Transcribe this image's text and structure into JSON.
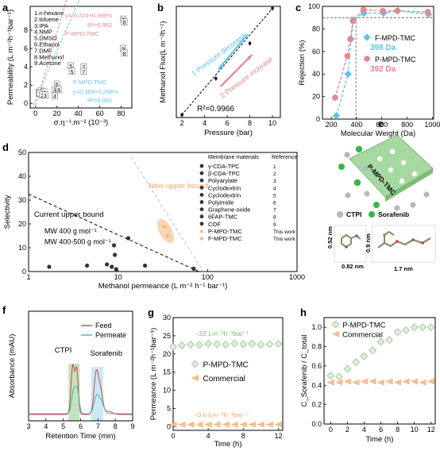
{
  "colors": {
    "pink": "#e8868a",
    "blue": "#5ec4e6",
    "orange": "#f3a86a",
    "black": "#111111",
    "green": "#90cc90",
    "teal": "#3fb8a8",
    "red": "#e03c3c",
    "peach": "#f6c08a"
  },
  "panel_labels": {
    "a": "a",
    "b": "b",
    "c": "c",
    "d": "d",
    "e": "e",
    "f": "f",
    "g": "g",
    "h": "h"
  },
  "chart_data": [
    {
      "id": "a",
      "type": "scatter",
      "xlabel": "σ.η⁻¹.m⁻² (10⁻³)",
      "ylabel": "Permeability (L m⁻²h⁻¹bar⁻¹)",
      "xticks": [
        "0",
        "20",
        "40",
        "60",
        "80"
      ],
      "yticks": [
        "0",
        "2",
        "4",
        "6",
        "8"
      ],
      "xlim": [
        -5,
        90
      ],
      "ylim": [
        -0.5,
        10.6
      ],
      "solvents": [
        "1.n-hexane",
        "2.toluene",
        "3.IPA",
        "4.NMP",
        "5.DMSO",
        "6.Ethanol",
        "7.DMF",
        "8.Methanol",
        "9.Acetone"
      ],
      "series": [
        {
          "name": "P-MPD-TMC",
          "fit": "y=-0.224+0.399*x",
          "r2": "R²=0.952",
          "slope": 0.399,
          "intercept": -0.224,
          "points": [
            {
              "x": 3,
              "y": 1.2,
              "l": "1"
            },
            {
              "x": 5,
              "y": 1.35,
              "l": "2"
            },
            {
              "x": 8,
              "y": 1.25,
              "l": "4"
            },
            {
              "x": 18,
              "y": 1.45,
              "l": "3"
            },
            {
              "x": 20,
              "y": 2.1,
              "l": "6"
            },
            {
              "x": 33,
              "y": 4.1,
              "l": "5"
            },
            {
              "x": 45,
              "y": 4.0,
              "l": "7"
            },
            {
              "x": 82,
              "y": 9.2,
              "l": "9"
            },
            {
              "x": 83,
              "y": 8.9,
              "l": "8"
            }
          ]
        },
        {
          "name": "F-MPD-TMC",
          "fit": "y=0.369+0.268*x",
          "r2": "R²=0.901",
          "slope": 0.268,
          "intercept": 0.369,
          "points": [
            {
              "x": 4,
              "y": 1.1,
              "l": "1"
            },
            {
              "x": 6,
              "y": 0.9,
              "l": "2"
            },
            {
              "x": 9,
              "y": 0.9,
              "l": "3"
            },
            {
              "x": 18,
              "y": 0.85,
              "l": "4"
            },
            {
              "x": 22,
              "y": 1.5,
              "l": "6"
            },
            {
              "x": 34,
              "y": 3.5,
              "l": "5"
            },
            {
              "x": 45,
              "y": 3.5,
              "l": "7"
            },
            {
              "x": 82,
              "y": 6.0,
              "l": "9"
            },
            {
              "x": 83,
              "y": 5.5,
              "l": "8"
            }
          ]
        }
      ]
    },
    {
      "id": "b",
      "type": "line",
      "xlabel": "Pressure (bar)",
      "ylabel": "Methanol Flux(L m⁻²h⁻¹)",
      "xticks": [
        "2",
        "4",
        "6",
        "8",
        "10"
      ],
      "xlim": [
        1.5,
        10.7
      ],
      "ylim": [
        55,
        340
      ],
      "x": [
        2,
        5,
        8,
        10
      ],
      "y": [
        62,
        155,
        245,
        335
      ],
      "r2": "R²=0.9966",
      "annot_up": "1 Pressure decrease",
      "annot_down": "2 Pressure increase"
    },
    {
      "id": "c",
      "type": "line",
      "xlabel": "Molecular Weight (Da)",
      "ylabel": "Rejection (%)",
      "xticks": [
        "200",
        "400",
        "600",
        "800",
        "1000"
      ],
      "yticks": [
        "0",
        "20",
        "40",
        "60",
        "80",
        "100"
      ],
      "xlim": [
        130,
        1010
      ],
      "ylim": [
        0,
        100
      ],
      "series": [
        {
          "name": "F-MPD-TMC",
          "cutoff": "398 Da",
          "x": [
            240,
            333,
            356,
            376,
            459,
            613,
            727,
            969
          ],
          "y": [
            3,
            40,
            71,
            88,
            94,
            94,
            96,
            93
          ]
        },
        {
          "name": "P-MPD-TMC",
          "cutoff": "392 Da",
          "x": [
            230,
            327,
            350,
            371,
            454,
            608,
            722,
            964
          ],
          "y": [
            19,
            56,
            71,
            87,
            97,
            96,
            96,
            95
          ]
        }
      ]
    },
    {
      "id": "d",
      "type": "scatter",
      "xlabel": "Methanol permeance (L m⁻² h⁻¹ bar⁻¹)",
      "ylabel": "Selectivity",
      "xticks": [
        "1",
        "10",
        "100",
        "1000"
      ],
      "yticks": [
        "0",
        "10",
        "20",
        "30",
        "40",
        "50"
      ],
      "xlim": [
        1,
        1000
      ],
      "ylim": [
        0,
        50
      ],
      "lines": {
        "current": "Current upper bound",
        "new": "New upper bound",
        "mw400": "MW 400 g mol⁻¹",
        "mw400500": "MW 400-500 g mol⁻¹"
      },
      "legend_header": [
        "Membrane materials",
        "Reference"
      ],
      "legend": [
        {
          "name": "γ-CDA-TPC",
          "ref": "1"
        },
        {
          "name": "β-CDA-TPC",
          "ref": "2"
        },
        {
          "name": "Polyarylate",
          "ref": "3"
        },
        {
          "name": "Cyclodextrin",
          "ref": "4"
        },
        {
          "name": "Cyclodextrin",
          "ref": "5"
        },
        {
          "name": "Polyimide",
          "ref": "6"
        },
        {
          "name": "Graphene oxide",
          "ref": "7"
        },
        {
          "name": "6FAP-TMC",
          "ref": "8"
        },
        {
          "name": "COF",
          "ref": "9"
        },
        {
          "name": "P-MPD-TMC",
          "ref": "This work"
        },
        {
          "name": "F-MPD-TMC",
          "ref": "This work"
        }
      ],
      "points": [
        {
          "x": 1.7,
          "y": 2
        },
        {
          "x": 4.5,
          "y": 2.5
        },
        {
          "x": 7.5,
          "y": 3
        },
        {
          "x": 8.5,
          "y": 2
        },
        {
          "x": 9,
          "y": 11
        },
        {
          "x": 9.2,
          "y": 7
        },
        {
          "x": 9.5,
          "y": 1
        },
        {
          "x": 13,
          "y": 14
        },
        {
          "x": 20,
          "y": 2.5
        },
        {
          "x": 70,
          "y": 1.2
        },
        {
          "x": 33,
          "y": 19
        },
        {
          "x": 36,
          "y": 15
        }
      ]
    },
    {
      "id": "f",
      "type": "line",
      "xlabel": "Retention Time (min)",
      "ylabel": "Absorbance (mAU)",
      "xticks": [
        "3",
        "4",
        "5",
        "6",
        "7",
        "8",
        "9"
      ],
      "xlim": [
        3,
        9
      ],
      "series": [
        {
          "name": "Feed"
        },
        {
          "name": "Permeate"
        }
      ],
      "annotations": [
        "CTPI",
        "Sorafenib"
      ]
    },
    {
      "id": "g",
      "type": "scatter",
      "xlabel": "Time (h)",
      "ylabel": "Permeance (L m⁻²h⁻¹bar⁻¹)",
      "xticks": [
        "0",
        "4",
        "8",
        "12"
      ],
      "yticks": [
        "0",
        "5",
        "10",
        "15",
        "20",
        "25",
        "30"
      ],
      "xlim": [
        0,
        12.5
      ],
      "ylim": [
        -1,
        30
      ],
      "x": [
        0,
        1,
        2,
        3,
        4,
        5,
        6,
        7,
        8,
        9,
        10,
        11,
        12
      ],
      "series": [
        {
          "name": "P-MPD-TMC",
          "values": [
            22.0,
            22.4,
            22.6,
            22.5,
            22.8,
            22.7,
            22.6,
            22.9,
            22.7,
            22.8,
            22.6,
            22.7,
            22.8
          ]
        },
        {
          "name": "Commercial",
          "values": [
            0.6,
            0.6,
            0.6,
            0.6,
            0.6,
            0.6,
            0.6,
            0.6,
            0.6,
            0.6,
            0.6,
            0.6,
            0.6
          ]
        }
      ],
      "annot_top": "~22 Lm⁻²h⁻¹bar⁻¹",
      "annot_bottom": "~0.6 Lm⁻²h⁻¹bar⁻¹"
    },
    {
      "id": "h",
      "type": "scatter",
      "xlabel": "Time (h)",
      "ylabel": "C_Sorafenib / C_total",
      "xticks": [
        "0",
        "2",
        "4",
        "6",
        "8",
        "10",
        "12"
      ],
      "yticks": [
        "0.0",
        "0.2",
        "0.4",
        "0.6",
        "0.8",
        "1.0"
      ],
      "xlim": [
        -0.8,
        12.5
      ],
      "ylim": [
        0,
        1.1
      ],
      "x": [
        0,
        1,
        2,
        3,
        4,
        5,
        6,
        7,
        8,
        9,
        10,
        11,
        12
      ],
      "series": [
        {
          "name": "P-MPD-TMC",
          "values": [
            0.5,
            0.49,
            0.57,
            0.64,
            0.7,
            0.76,
            0.85,
            0.87,
            0.95,
            0.97,
            1.0,
            1.0,
            1.0
          ]
        },
        {
          "name": "Commercial",
          "values": [
            0.43,
            0.43,
            0.44,
            0.43,
            0.44,
            0.44,
            0.43,
            0.44,
            0.43,
            0.44,
            0.44,
            0.43,
            0.44
          ]
        }
      ]
    }
  ],
  "panel_e": {
    "title": "P-MPD-TMC",
    "legend_a": "CTPI",
    "legend_b": "Sorafenib",
    "dim_a_h": "0.52 nm",
    "dim_a_w": "0.82 nm",
    "dim_b_h": "0.9 nm",
    "dim_b_w": "1.7 nm"
  }
}
